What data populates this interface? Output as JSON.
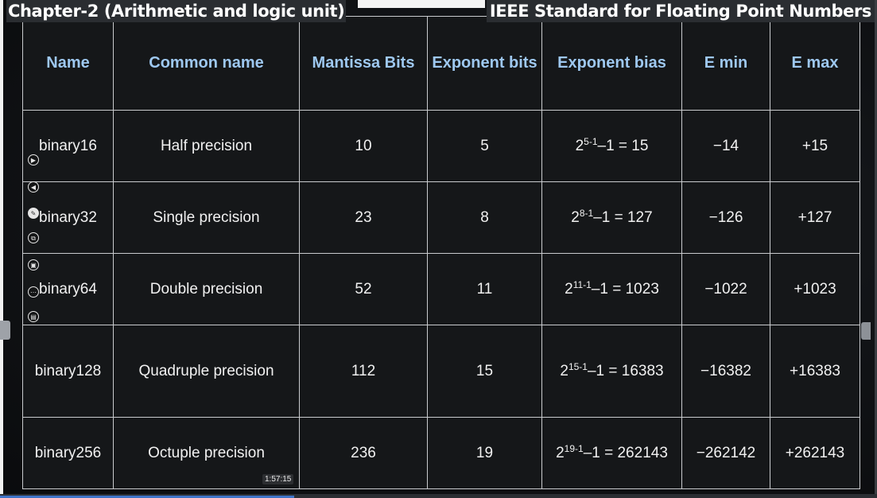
{
  "header": {
    "chapter_title": "Chapter-2 (Arithmetic and logic unit)",
    "slide_title": "IEEE Standard for Floating Point Numbers"
  },
  "table": {
    "columns": [
      "Name",
      "Common name",
      "Mantissa Bits",
      "Exponent bits",
      "Exponent bias",
      "E min",
      "E max"
    ],
    "rows": [
      {
        "name": "binary16",
        "common": "Half precision",
        "mantissa": "10",
        "exponent": "5",
        "bias_base": "2",
        "bias_exp": "5-1",
        "bias_rest": "–1 = 15",
        "emin": "−14",
        "emax": "+15"
      },
      {
        "name": "binary32",
        "common": "Single precision",
        "mantissa": "23",
        "exponent": "8",
        "bias_base": "2",
        "bias_exp": "8-1",
        "bias_rest": "–1 = 127",
        "emin": "−126",
        "emax": "+127"
      },
      {
        "name": "binary64",
        "common": "Double precision",
        "mantissa": "52",
        "exponent": "11",
        "bias_base": "2",
        "bias_exp": "11-1",
        "bias_rest": "–1 = 1023",
        "emin": "−1022",
        "emax": "+1023"
      },
      {
        "name": "binary128",
        "common": "Quadruple precision",
        "mantissa": "112",
        "exponent": "15",
        "bias_base": "2",
        "bias_exp": "15-1",
        "bias_rest": "–1 = 16383",
        "emin": "−16382",
        "emax": "+16383"
      },
      {
        "name": "binary256",
        "common": "Octuple precision",
        "mantissa": "236",
        "exponent": "19",
        "bias_base": "2",
        "bias_exp": "19-1",
        "bias_rest": "–1 = 262143",
        "emin": "−262142",
        "emax": "+262143"
      }
    ]
  },
  "player": {
    "timestamp": "1:57:15",
    "progress_fraction": 0.335,
    "controls": [
      "play-icon",
      "rewind-icon",
      "pen-icon",
      "copy-icon",
      "screen-icon",
      "more-icon",
      "caption-icon"
    ]
  },
  "colors": {
    "header_text": "#9ec8f0",
    "cell_text": "#f1f1f1",
    "grid_line": "#c9cbce",
    "progress": "#3f74c8"
  }
}
